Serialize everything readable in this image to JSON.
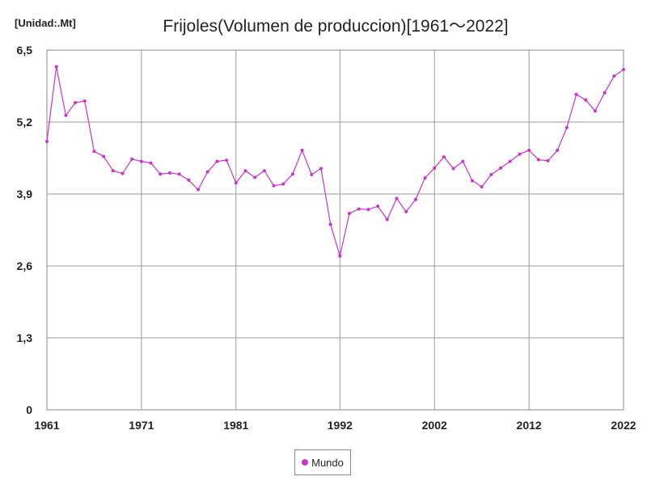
{
  "chart_data": {
    "type": "line",
    "title": "Frijoles(Volumen de produccion)[1961～2022]",
    "unit_label": "[Unidad:.Mt]",
    "x_range": [
      1961,
      2022
    ],
    "x_tick_values": [
      1961,
      1971,
      1981,
      1992,
      2002,
      2012,
      2022
    ],
    "x_tick_labels": [
      "1961",
      "1971",
      "1981",
      "1992",
      "2002",
      "2012",
      "2022"
    ],
    "y_range": [
      0,
      6.5
    ],
    "y_tick_values": [
      0,
      1.3,
      2.6,
      3.9,
      5.2,
      6.5
    ],
    "y_tick_labels": [
      "0",
      "1,3",
      "2,6",
      "3,9",
      "5,2",
      "6,5"
    ],
    "grid": true,
    "legend_position": "bottom-center",
    "series": [
      {
        "name": "Mundo",
        "color": "#cc33cc",
        "x": [
          1961,
          1962,
          1963,
          1964,
          1965,
          1966,
          1967,
          1968,
          1969,
          1970,
          1971,
          1972,
          1973,
          1974,
          1975,
          1976,
          1977,
          1978,
          1979,
          1980,
          1981,
          1982,
          1983,
          1984,
          1985,
          1986,
          1987,
          1988,
          1989,
          1990,
          1991,
          1992,
          1993,
          1994,
          1995,
          1996,
          1997,
          1998,
          1999,
          2000,
          2001,
          2002,
          2003,
          2004,
          2005,
          2006,
          2007,
          2008,
          2009,
          2010,
          2011,
          2012,
          2013,
          2014,
          2015,
          2016,
          2017,
          2018,
          2019,
          2020,
          2021,
          2022
        ],
        "values": [
          4.85,
          6.2,
          5.32,
          5.55,
          5.58,
          4.67,
          4.58,
          4.32,
          4.27,
          4.53,
          4.49,
          4.46,
          4.26,
          4.28,
          4.26,
          4.15,
          3.98,
          4.3,
          4.49,
          4.51,
          4.1,
          4.32,
          4.2,
          4.32,
          4.05,
          4.08,
          4.26,
          4.69,
          4.25,
          4.36,
          3.35,
          2.78,
          3.55,
          3.63,
          3.62,
          3.68,
          3.44,
          3.82,
          3.58,
          3.8,
          4.19,
          4.37,
          4.57,
          4.36,
          4.49,
          4.14,
          4.03,
          4.25,
          4.37,
          4.49,
          4.62,
          4.69,
          4.52,
          4.5,
          4.69,
          5.1,
          5.7,
          5.6,
          5.4,
          5.73,
          6.03,
          6.15
        ]
      }
    ]
  }
}
